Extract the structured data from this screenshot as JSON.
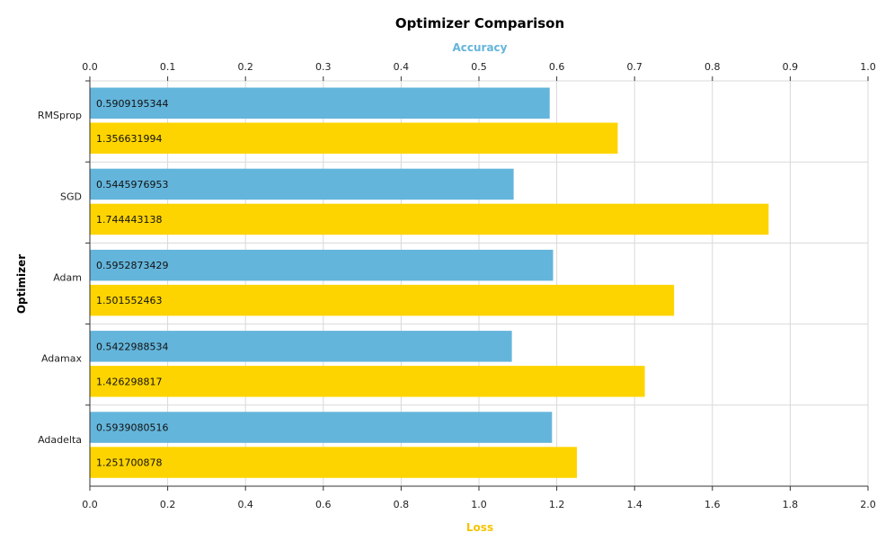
{
  "chart_data": {
    "type": "bar",
    "orientation": "horizontal",
    "title": "Optimizer Comparison",
    "ylabel": "Optimizer",
    "categories": [
      "RMSprop",
      "SGD",
      "Adam",
      "Adamax",
      "Adadelta"
    ],
    "axes": {
      "top": {
        "label": "Accuracy",
        "min": 0,
        "max": 1,
        "step": 0.1,
        "color": "#64b5db"
      },
      "bottom": {
        "label": "Loss",
        "min": 0,
        "max": 2,
        "step": 0.2,
        "color": "#f5c400"
      }
    },
    "series": [
      {
        "name": "Accuracy",
        "axis": "top",
        "color": "#64b5db",
        "values": [
          0.5909195344,
          0.5445976953,
          0.5952873429,
          0.5422988534,
          0.5939080516
        ],
        "labels": [
          "0.5909195344",
          "0.5445976953",
          "0.5952873429",
          "0.5422988534",
          "0.5939080516"
        ]
      },
      {
        "name": "Loss",
        "axis": "bottom",
        "color": "#fed400",
        "values": [
          1.356631994,
          1.744443138,
          1.501552463,
          1.426298817,
          1.251700878
        ],
        "labels": [
          "1.356631994",
          "1.744443138",
          "1.501552463",
          "1.426298817",
          "1.251700878"
        ]
      }
    ],
    "grid": true,
    "top_ticks": [
      "0.0",
      "0.1",
      "0.2",
      "0.3",
      "0.4",
      "0.5",
      "0.6",
      "0.7",
      "0.8",
      "0.9",
      "1.0"
    ],
    "bottom_ticks": [
      "0.0",
      "0.2",
      "0.4",
      "0.6",
      "0.8",
      "1.0",
      "1.2",
      "1.4",
      "1.6",
      "1.8",
      "2.0"
    ]
  }
}
